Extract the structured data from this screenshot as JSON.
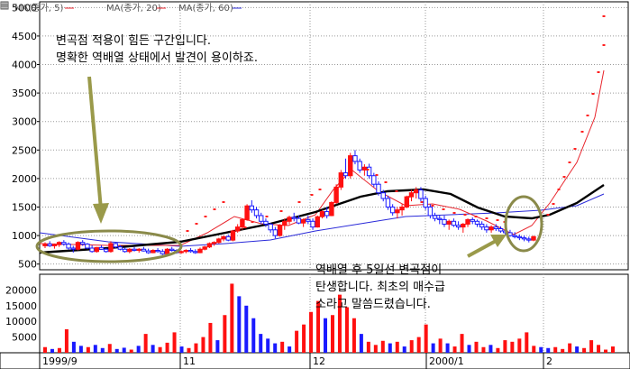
{
  "legend": {
    "items": [
      {
        "label": "MA(종가, 5)",
        "color": "#e8242c"
      },
      {
        "label": "MA(종가, 20)",
        "color": "#e8242c"
      },
      {
        "label": "MA(종가, 60)",
        "color": "#000000"
      }
    ]
  },
  "annotations": {
    "top_left": [
      "변곡점 적용이 힘든 구간입니다.",
      "명확한 역배열 상태에서 발견이 용이하죠."
    ],
    "bottom_right": [
      "역배열 후 5일선 변곡점이",
      "탄생합니다. 최초의 매수급",
      "소라고 말씀드렸습니다."
    ]
  },
  "colors": {
    "up": "#ff1010",
    "down": "#1a1aff",
    "ma5": "#e8242c",
    "ma20": "#e8242c",
    "ma60": "#000000",
    "blue_line": "#2b2bd9",
    "sar": "#ff2020",
    "ellipse": "#8a8a4a",
    "arrow": "#9a9a4a"
  },
  "chart_data": {
    "type": "candlestick",
    "price_axis": {
      "ticks": [
        500,
        1000,
        1500,
        2000,
        2500,
        3000,
        3500,
        4000,
        4500,
        5000
      ],
      "ylim": [
        400,
        5100
      ]
    },
    "volume_axis": {
      "ticks": [
        5000,
        10000,
        15000,
        20000
      ],
      "ylim": [
        0,
        25000
      ]
    },
    "x_tick_labels": [
      "1999/9",
      "11",
      "12",
      "2000/1",
      "2"
    ],
    "dates_index": [
      0,
      39,
      72,
      105,
      132
    ],
    "candles": [
      [
        820,
        880,
        780,
        850
      ],
      [
        850,
        900,
        800,
        820
      ],
      [
        820,
        860,
        770,
        840
      ],
      [
        840,
        900,
        800,
        880
      ],
      [
        880,
        920,
        820,
        850
      ],
      [
        850,
        880,
        750,
        780
      ],
      [
        780,
        820,
        700,
        760
      ],
      [
        760,
        900,
        740,
        880
      ],
      [
        880,
        920,
        820,
        850
      ],
      [
        850,
        870,
        760,
        780
      ],
      [
        780,
        830,
        700,
        720
      ],
      [
        720,
        800,
        700,
        790
      ],
      [
        790,
        830,
        750,
        760
      ],
      [
        760,
        780,
        700,
        720
      ],
      [
        720,
        900,
        700,
        860
      ],
      [
        860,
        880,
        780,
        800
      ],
      [
        800,
        830,
        740,
        760
      ],
      [
        760,
        790,
        700,
        720
      ],
      [
        720,
        780,
        690,
        760
      ],
      [
        760,
        800,
        720,
        740
      ],
      [
        740,
        780,
        700,
        760
      ],
      [
        760,
        800,
        720,
        730
      ],
      [
        730,
        770,
        680,
        700
      ],
      [
        700,
        760,
        690,
        740
      ],
      [
        740,
        780,
        700,
        720
      ],
      [
        720,
        760,
        660,
        680
      ],
      [
        680,
        780,
        670,
        760
      ],
      [
        760,
        800,
        720,
        740
      ],
      [
        740,
        760,
        680,
        700
      ],
      [
        700,
        740,
        680,
        720
      ],
      [
        720,
        760,
        690,
        740
      ],
      [
        740,
        780,
        700,
        720
      ],
      [
        720,
        760,
        680,
        700
      ],
      [
        700,
        790,
        690,
        760
      ],
      [
        760,
        820,
        740,
        800
      ],
      [
        800,
        880,
        780,
        860
      ],
      [
        860,
        900,
        820,
        880
      ],
      [
        880,
        960,
        860,
        940
      ],
      [
        940,
        1000,
        900,
        980
      ],
      [
        980,
        1020,
        900,
        920
      ],
      [
        920,
        1100,
        900,
        1080
      ],
      [
        1080,
        1200,
        1050,
        1150
      ],
      [
        1150,
        1300,
        1100,
        1280
      ],
      [
        1280,
        1550,
        1260,
        1520
      ],
      [
        1520,
        1620,
        1400,
        1450
      ],
      [
        1450,
        1500,
        1300,
        1350
      ],
      [
        1350,
        1400,
        1200,
        1250
      ],
      [
        1250,
        1300,
        1150,
        1200
      ],
      [
        1200,
        1220,
        1050,
        1100
      ],
      [
        1100,
        1150,
        950,
        1000
      ],
      [
        1000,
        1200,
        980,
        1180
      ],
      [
        1180,
        1300,
        1100,
        1250
      ],
      [
        1250,
        1350,
        1200,
        1320
      ],
      [
        1320,
        1400,
        1250,
        1300
      ],
      [
        1300,
        1350,
        1200,
        1220
      ],
      [
        1220,
        1300,
        1150,
        1280
      ],
      [
        1280,
        1350,
        1200,
        1250
      ],
      [
        1250,
        1300,
        1100,
        1150
      ],
      [
        1150,
        1350,
        1140,
        1330
      ],
      [
        1330,
        1450,
        1300,
        1420
      ],
      [
        1420,
        1500,
        1300,
        1350
      ],
      [
        1350,
        1600,
        1340,
        1580
      ],
      [
        1580,
        1900,
        1550,
        1850
      ],
      [
        1850,
        2150,
        1800,
        2100
      ],
      [
        2100,
        2350,
        2000,
        2050
      ],
      [
        2050,
        2450,
        2000,
        2400
      ],
      [
        2400,
        2500,
        2250,
        2300
      ],
      [
        2300,
        2350,
        2100,
        2150
      ],
      [
        2150,
        2250,
        2050,
        2200
      ],
      [
        2200,
        2260,
        2000,
        2050
      ],
      [
        2050,
        2100,
        1850,
        1900
      ],
      [
        1900,
        1950,
        1700,
        1750
      ],
      [
        1750,
        1800,
        1600,
        1650
      ],
      [
        1650,
        1700,
        1450,
        1500
      ],
      [
        1500,
        1550,
        1350,
        1400
      ],
      [
        1400,
        1500,
        1300,
        1450
      ],
      [
        1450,
        1550,
        1350,
        1500
      ],
      [
        1500,
        1700,
        1480,
        1680
      ],
      [
        1680,
        1800,
        1600,
        1750
      ],
      [
        1750,
        1850,
        1650,
        1800
      ],
      [
        1800,
        1850,
        1600,
        1650
      ],
      [
        1650,
        1700,
        1450,
        1500
      ],
      [
        1500,
        1550,
        1300,
        1350
      ],
      [
        1350,
        1400,
        1250,
        1300
      ],
      [
        1300,
        1350,
        1200,
        1280
      ],
      [
        1280,
        1350,
        1150,
        1200
      ],
      [
        1200,
        1280,
        1100,
        1250
      ],
      [
        1250,
        1300,
        1150,
        1180
      ],
      [
        1180,
        1250,
        1100,
        1150
      ],
      [
        1150,
        1220,
        1050,
        1200
      ],
      [
        1200,
        1300,
        1150,
        1280
      ],
      [
        1280,
        1320,
        1200,
        1250
      ],
      [
        1250,
        1280,
        1150,
        1200
      ],
      [
        1200,
        1250,
        1100,
        1150
      ],
      [
        1150,
        1200,
        1050,
        1100
      ],
      [
        1100,
        1180,
        1050,
        1150
      ],
      [
        1150,
        1200,
        1080,
        1120
      ],
      [
        1120,
        1160,
        1050,
        1080
      ],
      [
        1080,
        1120,
        1000,
        1050
      ],
      [
        1050,
        1100,
        980,
        1000
      ],
      [
        1000,
        1060,
        950,
        980
      ],
      [
        980,
        1020,
        920,
        960
      ],
      [
        960,
        1000,
        900,
        940
      ],
      [
        940,
        980,
        880,
        920
      ],
      [
        920,
        1000,
        900,
        980
      ]
    ],
    "volume": [
      {
        "v": 1800,
        "up": true
      },
      {
        "v": 1200,
        "up": false
      },
      {
        "v": 1500,
        "up": true
      },
      {
        "v": 7500,
        "up": true
      },
      {
        "v": 3500,
        "up": false
      },
      {
        "v": 2200,
        "up": false
      },
      {
        "v": 1800,
        "up": true
      },
      {
        "v": 2500,
        "up": false
      },
      {
        "v": 1500,
        "up": false
      },
      {
        "v": 2800,
        "up": true
      },
      {
        "v": 1200,
        "up": false
      },
      {
        "v": 1600,
        "up": false
      },
      {
        "v": 1000,
        "up": true
      },
      {
        "v": 2200,
        "up": false
      },
      {
        "v": 6000,
        "up": true
      },
      {
        "v": 2500,
        "up": false
      },
      {
        "v": 1800,
        "up": true
      },
      {
        "v": 3200,
        "up": true
      },
      {
        "v": 6500,
        "up": true
      },
      {
        "v": 2000,
        "up": false
      },
      {
        "v": 1500,
        "up": true
      },
      {
        "v": 3000,
        "up": true
      },
      {
        "v": 5000,
        "up": true
      },
      {
        "v": 9500,
        "up": true
      },
      {
        "v": 4000,
        "up": false
      },
      {
        "v": 12000,
        "up": true
      },
      {
        "v": 22000,
        "up": true
      },
      {
        "v": 18000,
        "up": false
      },
      {
        "v": 15000,
        "up": false
      },
      {
        "v": 11000,
        "up": false
      },
      {
        "v": 6000,
        "up": false
      },
      {
        "v": 4500,
        "up": false
      },
      {
        "v": 3000,
        "up": false
      },
      {
        "v": 3500,
        "up": true
      },
      {
        "v": 2000,
        "up": false
      },
      {
        "v": 7000,
        "up": true
      },
      {
        "v": 9000,
        "up": true
      },
      {
        "v": 13000,
        "up": true
      },
      {
        "v": 16500,
        "up": true
      },
      {
        "v": 11000,
        "up": false
      },
      {
        "v": 12000,
        "up": true
      },
      {
        "v": 18500,
        "up": true
      },
      {
        "v": 14500,
        "up": true
      },
      {
        "v": 11000,
        "up": true
      },
      {
        "v": 6000,
        "up": false
      },
      {
        "v": 3500,
        "up": true
      },
      {
        "v": 2500,
        "up": true
      },
      {
        "v": 3800,
        "up": true
      },
      {
        "v": 3000,
        "up": false
      },
      {
        "v": 3500,
        "up": true
      },
      {
        "v": 2000,
        "up": false
      },
      {
        "v": 4000,
        "up": true
      },
      {
        "v": 5000,
        "up": true
      },
      {
        "v": 9000,
        "up": true
      },
      {
        "v": 3000,
        "up": false
      },
      {
        "v": 4500,
        "up": true
      },
      {
        "v": 3000,
        "up": false
      },
      {
        "v": 2000,
        "up": true
      },
      {
        "v": 6000,
        "up": true
      },
      {
        "v": 2500,
        "up": false
      },
      {
        "v": 3500,
        "up": true
      },
      {
        "v": 1800,
        "up": true
      },
      {
        "v": 2500,
        "up": false
      },
      {
        "v": 1500,
        "up": true
      },
      {
        "v": 4000,
        "up": true
      },
      {
        "v": 3500,
        "up": true
      },
      {
        "v": 4500,
        "up": true
      },
      {
        "v": 6500,
        "up": true
      },
      {
        "v": 2200,
        "up": true
      },
      {
        "v": 1800,
        "up": false
      },
      {
        "v": 1500,
        "up": false
      },
      {
        "v": 1800,
        "up": true
      },
      {
        "v": 1200,
        "up": true
      },
      {
        "v": 3000,
        "up": true
      },
      {
        "v": 2000,
        "up": false
      },
      {
        "v": 1500,
        "up": true
      },
      {
        "v": 4000,
        "up": true
      },
      {
        "v": 2500,
        "up": true
      },
      {
        "v": 1000,
        "up": true
      },
      {
        "v": 2000,
        "up": true
      }
    ],
    "ma60_curve": [
      [
        44,
        280
      ],
      [
        120,
        275
      ],
      [
        200,
        268
      ],
      [
        250,
        258
      ],
      [
        300,
        248
      ],
      [
        350,
        235
      ],
      [
        400,
        218
      ],
      [
        430,
        212
      ],
      [
        470,
        210
      ],
      [
        500,
        215
      ],
      [
        530,
        230
      ],
      [
        560,
        240
      ],
      [
        590,
        242
      ],
      [
        610,
        238
      ],
      [
        640,
        225
      ],
      [
        670,
        205
      ]
    ],
    "ma20_curve": [
      [
        44,
        270
      ],
      [
        120,
        272
      ],
      [
        200,
        272
      ],
      [
        230,
        258
      ],
      [
        260,
        240
      ],
      [
        290,
        248
      ],
      [
        320,
        250
      ],
      [
        350,
        238
      ],
      [
        370,
        210
      ],
      [
        390,
        188
      ],
      [
        420,
        212
      ],
      [
        450,
        228
      ],
      [
        480,
        226
      ],
      [
        510,
        232
      ],
      [
        540,
        245
      ],
      [
        570,
        260
      ],
      [
        590,
        250
      ],
      [
        610,
        225
      ],
      [
        640,
        180
      ],
      [
        660,
        130
      ],
      [
        670,
        78
      ]
    ],
    "blue_curve": [
      [
        44,
        258
      ],
      [
        120,
        268
      ],
      [
        200,
        273
      ],
      [
        250,
        270
      ],
      [
        300,
        266
      ],
      [
        350,
        256
      ],
      [
        400,
        248
      ],
      [
        450,
        240
      ],
      [
        500,
        238
      ],
      [
        550,
        236
      ],
      [
        600,
        233
      ],
      [
        640,
        228
      ],
      [
        670,
        215
      ]
    ],
    "sar_points": [
      [
        248,
        224
      ],
      [
        238,
        232
      ],
      [
        228,
        240
      ],
      [
        218,
        248
      ],
      [
        208,
        256
      ],
      [
        272,
        252
      ],
      [
        280,
        246
      ],
      [
        296,
        240
      ],
      [
        312,
        234
      ],
      [
        332,
        224
      ],
      [
        346,
        216
      ],
      [
        355,
        210
      ],
      [
        408,
        188
      ],
      [
        418,
        194
      ],
      [
        428,
        202
      ],
      [
        440,
        212
      ],
      [
        454,
        218
      ],
      [
        468,
        224
      ],
      [
        480,
        228
      ],
      [
        492,
        232
      ],
      [
        504,
        236
      ],
      [
        516,
        238
      ],
      [
        528,
        240
      ],
      [
        540,
        242
      ],
      [
        552,
        244
      ],
      [
        560,
        246
      ],
      [
        608,
        238
      ],
      [
        614,
        226
      ],
      [
        620,
        210
      ],
      [
        626,
        196
      ],
      [
        632,
        180
      ],
      [
        638,
        165
      ],
      [
        646,
        146
      ],
      [
        652,
        128
      ],
      [
        658,
        104
      ],
      [
        664,
        80
      ],
      [
        670,
        50
      ],
      [
        670,
        18
      ]
    ]
  }
}
